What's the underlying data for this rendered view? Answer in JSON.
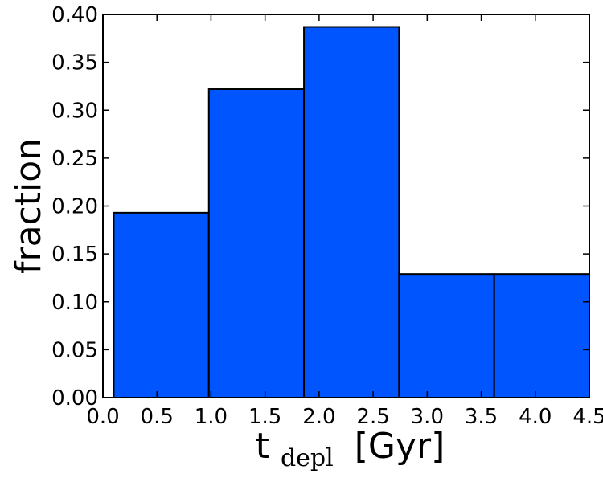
{
  "chart_data": {
    "type": "bar",
    "title": "",
    "xlabel": {
      "main": "t",
      "subscript": "depl",
      "unit": "[Gyr]"
    },
    "ylabel": "fraction",
    "xlim": [
      0.0,
      4.5
    ],
    "ylim": [
      0.0,
      0.4
    ],
    "bin_edges": [
      0.1,
      0.98,
      1.86,
      2.74,
      3.62,
      4.5
    ],
    "values": [
      0.193,
      0.322,
      0.387,
      0.129,
      0.129
    ],
    "bar_color": "#0055ff",
    "edge_color": "#000000",
    "x_ticks": [
      "0.0",
      "0.5",
      "1.0",
      "1.5",
      "2.0",
      "2.5",
      "3.0",
      "3.5",
      "4.0",
      "4.5"
    ],
    "y_ticks": [
      "0.00",
      "0.05",
      "0.10",
      "0.15",
      "0.20",
      "0.25",
      "0.30",
      "0.35",
      "0.40"
    ],
    "grid": false,
    "legend": "none"
  }
}
